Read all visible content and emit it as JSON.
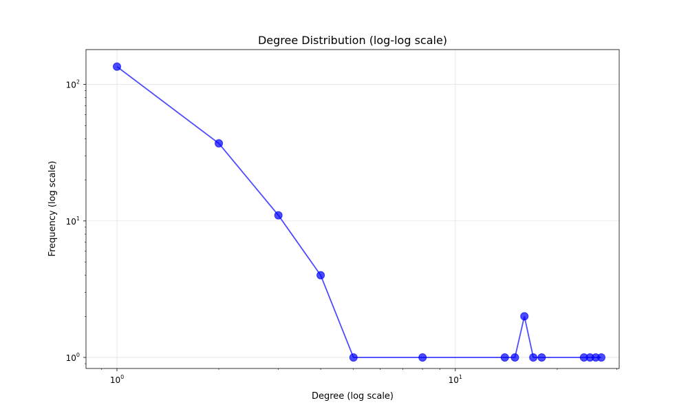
{
  "chart_data": {
    "type": "line",
    "title": "Degree Distribution (log-log scale)",
    "xlabel": "Degree (log scale)",
    "ylabel": "Frequency (log scale)",
    "xscale": "log",
    "yscale": "log",
    "xlim": [
      0.81,
      30.5
    ],
    "ylim": [
      0.83,
      180
    ],
    "grid": true,
    "color": "#0000ff",
    "x_ticks": [
      {
        "value": 1,
        "base": "10",
        "exp": "0"
      },
      {
        "value": 10,
        "base": "10",
        "exp": "1"
      }
    ],
    "y_ticks": [
      {
        "value": 1,
        "base": "10",
        "exp": "0"
      },
      {
        "value": 10,
        "base": "10",
        "exp": "1"
      },
      {
        "value": 100,
        "base": "10",
        "exp": "2"
      }
    ],
    "series": [
      {
        "x": [
          1,
          2,
          3,
          4,
          5,
          8,
          14,
          15,
          16,
          17,
          18,
          24,
          25,
          26,
          27
        ],
        "y": [
          135,
          37,
          11,
          4,
          1,
          1,
          1,
          1,
          2,
          1,
          1,
          1,
          1,
          1,
          1
        ]
      }
    ]
  }
}
